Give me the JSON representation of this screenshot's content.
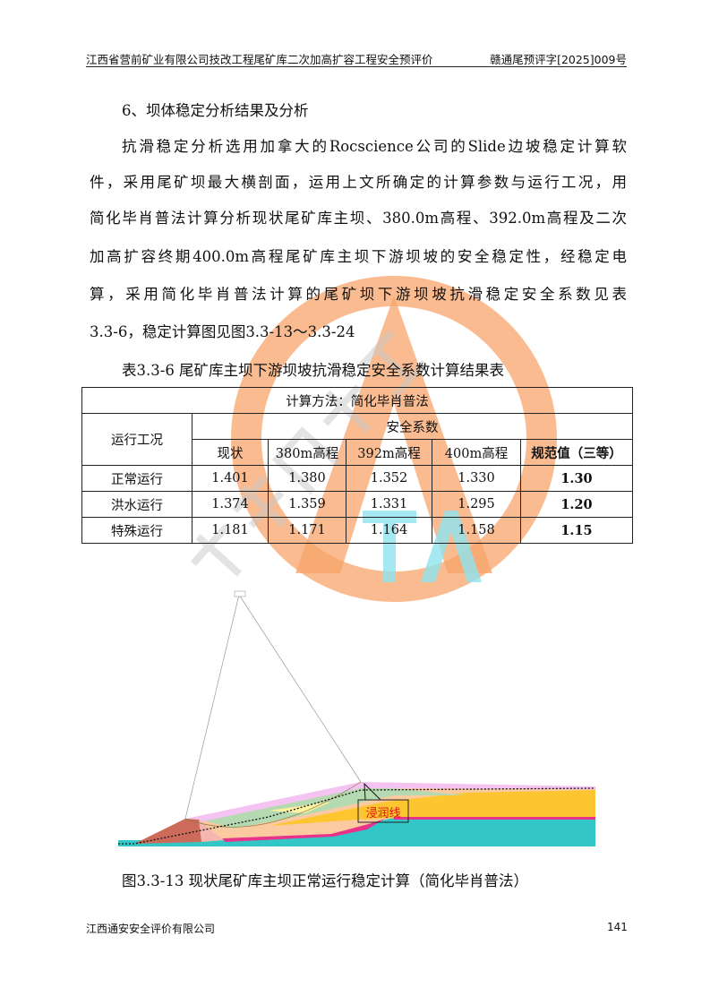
{
  "header": {
    "title": "江西省营前矿业有限公司技改工程尾矿库二次加高扩容工程安全预评价",
    "doc_number": "赣通尾预评字[2025]009号"
  },
  "section_heading": "6、坝体稳定分析结果及分析",
  "paragraph_lines": [
    "抗滑稳定分析选用加拿大的Rocscience公司的Slide边坡稳定计算软",
    "件，采用尾矿坝最大横剖面，运用上文所确定的计算参数与运行工况，用",
    "简化毕肖普法计算分析现状尾矿库主坝、380.0m高程、392.0m高程及二次",
    "加高扩容终期400.0m高程尾矿库主坝下游坝坡的安全稳定性，经稳定电",
    "算，采用简化毕肖普法计算的尾矿坝下游坝坡抗滑稳定安全系数见表",
    "3.3-6，稳定计算图见图3.3-13～3.3-24"
  ],
  "table": {
    "caption": "表3.3-6    尾矿库主坝下游坝坡抗滑稳定安全系数计算结果表",
    "method": "计算方法：简化毕肖普法",
    "row_header": "运行工况",
    "group_header": "安全系数",
    "columns": [
      "现状",
      "380m高程",
      "392m高程",
      "400m高程",
      "规范值（三等）"
    ],
    "rows": [
      {
        "condition": "正常运行",
        "values": [
          "1.401",
          "1.380",
          "1.352",
          "1.330",
          "1.30"
        ]
      },
      {
        "condition": "洪水运行",
        "values": [
          "1.374",
          "1.359",
          "1.331",
          "1.295",
          "1.20"
        ]
      },
      {
        "condition": "特殊运行",
        "values": [
          "1.181",
          "1.171",
          "1.164",
          "1.158",
          "1.15"
        ]
      }
    ]
  },
  "figure": {
    "callout_label": "浸润线",
    "caption": "图3.3-13    现状尾矿库主坝正常运行稳定计算（简化毕肖普法）",
    "colors": {
      "teal": "#33c6c6",
      "yellow": "#fdc631",
      "peach": "#fccaa0",
      "green": "#b5d9b0",
      "pink": "#f4c3f2",
      "red": "#cc6b5a",
      "magenta": "#e8338a",
      "callout_text": "#e01010"
    }
  },
  "watermark": {
    "text": "江西通安安全评价有限公司",
    "logo_text": "TA",
    "colors": {
      "orange": "#f7a46a",
      "cyan": "#8fe3f0",
      "gray": "#c8c8c8"
    }
  },
  "footer": {
    "company": "江西通安安全评价有限公司",
    "page_number": "141"
  }
}
